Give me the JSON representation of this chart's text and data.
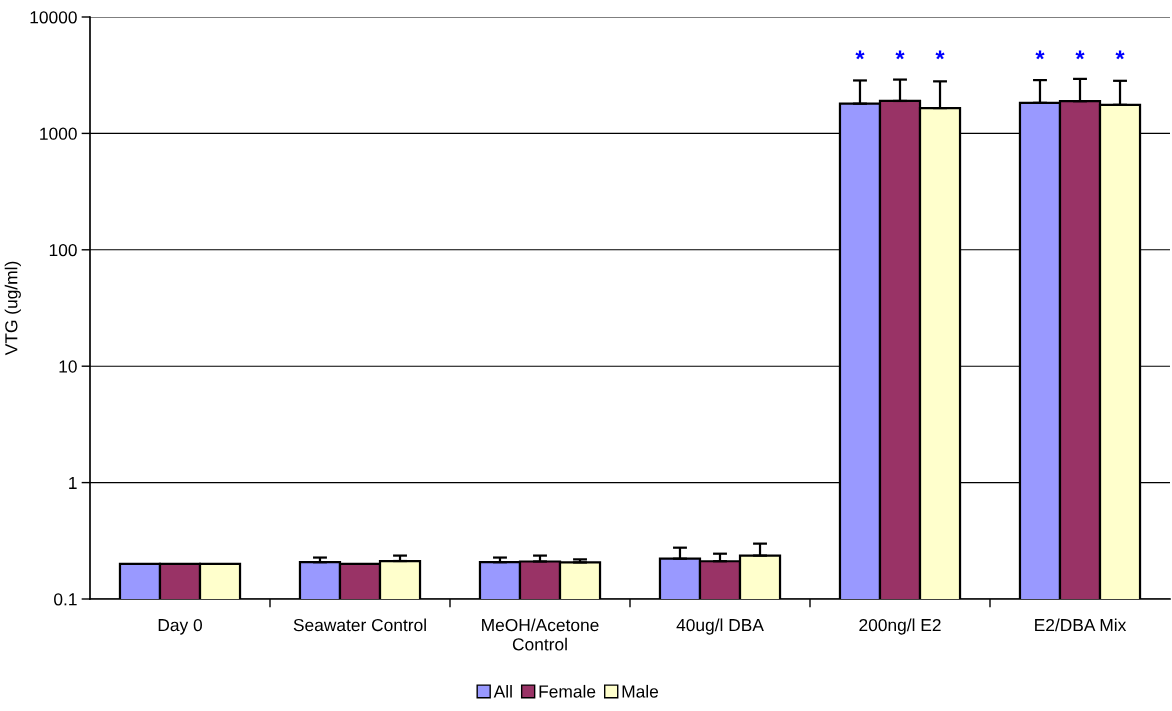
{
  "chart_data": {
    "type": "bar",
    "ylabel": "VTG (ug/ml)",
    "categories": [
      "Day 0",
      "Seawater Control",
      "MeOH/Acetone Control",
      "40ug/l DBA",
      "200ng/l E2",
      "E2/DBA Mix"
    ],
    "series": [
      {
        "name": "All",
        "color": "#9999ff",
        "values": [
          0.2,
          0.207,
          0.207,
          0.222,
          1800,
          1830
        ],
        "errors": [
          null,
          [
            0.207,
            0.227
          ],
          [
            0.207,
            0.227
          ],
          [
            0.222,
            0.276
          ],
          [
            1800,
            2850
          ],
          [
            1830,
            2870
          ]
        ],
        "value_labels": [
          null,
          null,
          null,
          null,
          "*",
          "*"
        ]
      },
      {
        "name": "Female",
        "color": "#993366",
        "values": [
          0.2,
          0.2,
          0.21,
          0.211,
          1900,
          1890
        ],
        "errors": [
          null,
          null,
          [
            0.21,
            0.236
          ],
          [
            0.211,
            0.245
          ],
          [
            1900,
            2900
          ],
          [
            1890,
            2940
          ]
        ],
        "value_labels": [
          null,
          null,
          null,
          null,
          "*",
          "*"
        ]
      },
      {
        "name": "Male",
        "color": "#ffffcc",
        "values": [
          0.2,
          0.212,
          0.206,
          0.236,
          1650,
          1760
        ],
        "errors": [
          null,
          [
            0.212,
            0.236
          ],
          [
            0.206,
            0.219
          ],
          [
            0.236,
            0.299
          ],
          [
            1650,
            2800
          ],
          [
            1760,
            2830
          ]
        ],
        "value_labels": [
          null,
          null,
          null,
          null,
          "*",
          "*"
        ]
      }
    ],
    "log": true,
    "ylim": [
      0.1,
      10000
    ],
    "yticks": [
      0.1,
      1,
      10,
      100,
      1000,
      10000
    ],
    "grid": "y",
    "legend": "bottom"
  }
}
